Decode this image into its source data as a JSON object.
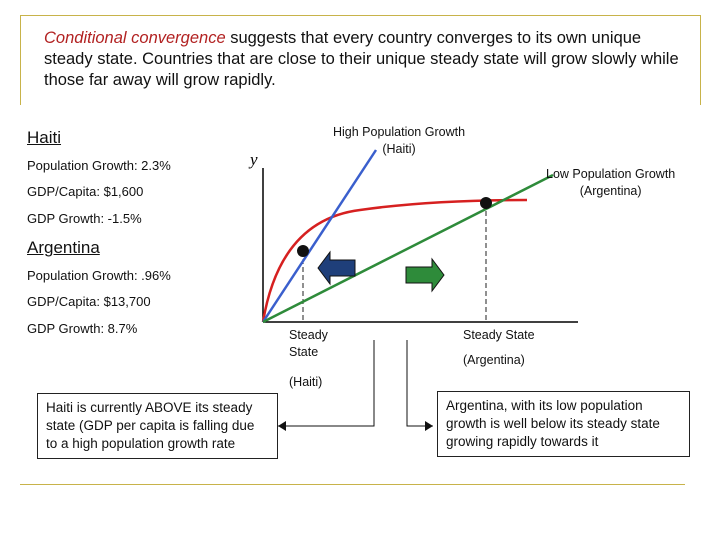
{
  "intro": {
    "highlight": "Conditional convergence",
    "rest": " suggests that every country converges to its own unique steady state.  Countries that are close to their unique steady state will grow slowly while those far away will grow rapidly."
  },
  "haiti": {
    "name": "Haiti",
    "population_growth": "Population Growth: 2.3%",
    "gdp_per_capita": "GDP/Capita: $1,600",
    "gdp_growth": "GDP Growth: -1.5%"
  },
  "argentina": {
    "name": "Argentina",
    "population_growth": "Population Growth: .96%",
    "gdp_per_capita": "GDP/Capita: $13,700",
    "gdp_growth": "GDP Growth: 8.7%"
  },
  "diagram": {
    "y_axis_label": "y",
    "high_growth_label": [
      "High Population Growth",
      "(Haiti)"
    ],
    "low_growth_label": [
      "Low Population Growth",
      "(Argentina)"
    ],
    "steady_state_haiti": [
      "Steady",
      "State",
      "(Haiti)"
    ],
    "steady_state_argentina": [
      "Steady State",
      "(Argentina)"
    ],
    "colors": {
      "production_curve": "#d62020",
      "high_growth_line": "#3a5fcd",
      "low_growth_line": "#2e8b3a",
      "left_arrow": "#1f3f7a",
      "right_arrow": "#2e8b3a"
    }
  },
  "notes": {
    "haiti": "Haiti is currently ABOVE its steady state (GDP per capita is falling due to a high population growth rate",
    "argentina": "Argentina, with its low population growth is well below its steady state growing rapidly towards it"
  }
}
